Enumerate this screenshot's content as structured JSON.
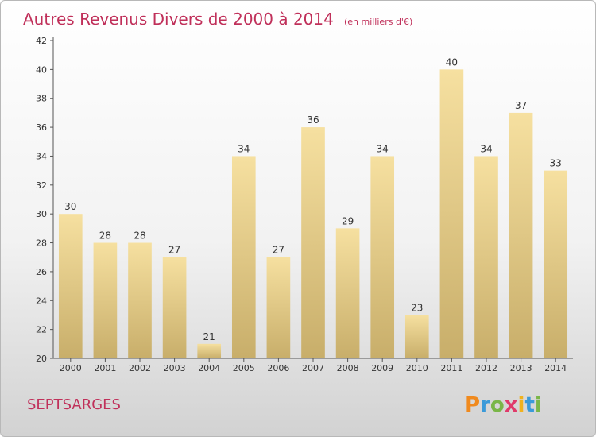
{
  "chart_data": {
    "type": "bar",
    "title": "Autres Revenus Divers de 2000 à 2014",
    "subtitle": "(en milliers d'€)",
    "categories": [
      "2000",
      "2001",
      "2002",
      "2003",
      "2004",
      "2005",
      "2006",
      "2007",
      "2008",
      "2009",
      "2010",
      "2011",
      "2012",
      "2013",
      "2014"
    ],
    "values": [
      30,
      28,
      28,
      27,
      21,
      34,
      27,
      36,
      29,
      34,
      23,
      40,
      34,
      37,
      33
    ],
    "ylim": [
      20,
      42
    ],
    "yticks": [
      20,
      22,
      24,
      26,
      28,
      30,
      32,
      34,
      36,
      38,
      40,
      42
    ],
    "grid": false,
    "bar_color_light": "#f6e0a0",
    "bar_color_dark": "#c8ae6a"
  },
  "location": "SEPTSARGES",
  "brand": {
    "letters": [
      "P",
      "r",
      "o",
      "x",
      "i",
      "t",
      "i"
    ],
    "colors": [
      "#f08a1e",
      "#3a9ad9",
      "#7ab648",
      "#e03a6a",
      "#f0b21e",
      "#3a9ad9",
      "#7ab648"
    ]
  }
}
